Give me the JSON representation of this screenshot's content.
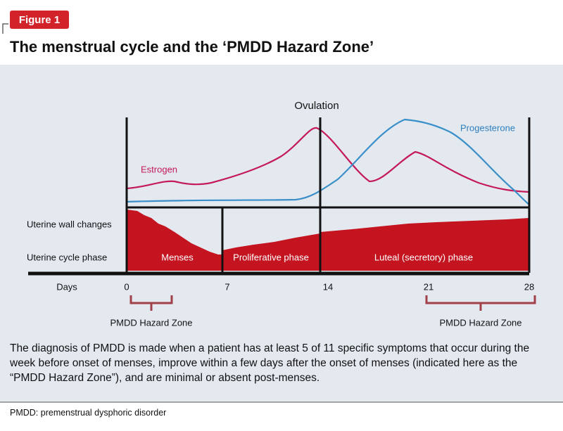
{
  "figure_label": "Figure 1",
  "title": "The menstrual cycle and the ‘PMDD Hazard Zone’",
  "diagram": {
    "ovulation": "Ovulation",
    "estrogen": "Estrogen",
    "progesterone": "Progesterone",
    "row_labels": [
      "Uterine wall changes",
      "Uterine cycle phase"
    ],
    "phases": [
      "Menses",
      "Proliferative phase",
      "Luteal (secretory) phase"
    ],
    "days_label": "Days",
    "days": [
      0,
      7,
      14,
      21,
      28
    ],
    "hazard_zones": [
      "PMDD Hazard Zone",
      "PMDD Hazard Zone"
    ]
  },
  "caption": "The diagnosis of PMDD is made when a patient has at least 5 of 11 specific symptoms that occur during the week before onset of menses, improve within a few days after the onset of menses (indicated here as the “PMDD Hazard Zone”), and are minimal or absent post-menses.",
  "footnote": "PMDD: premenstrual dysphoric disorder"
}
